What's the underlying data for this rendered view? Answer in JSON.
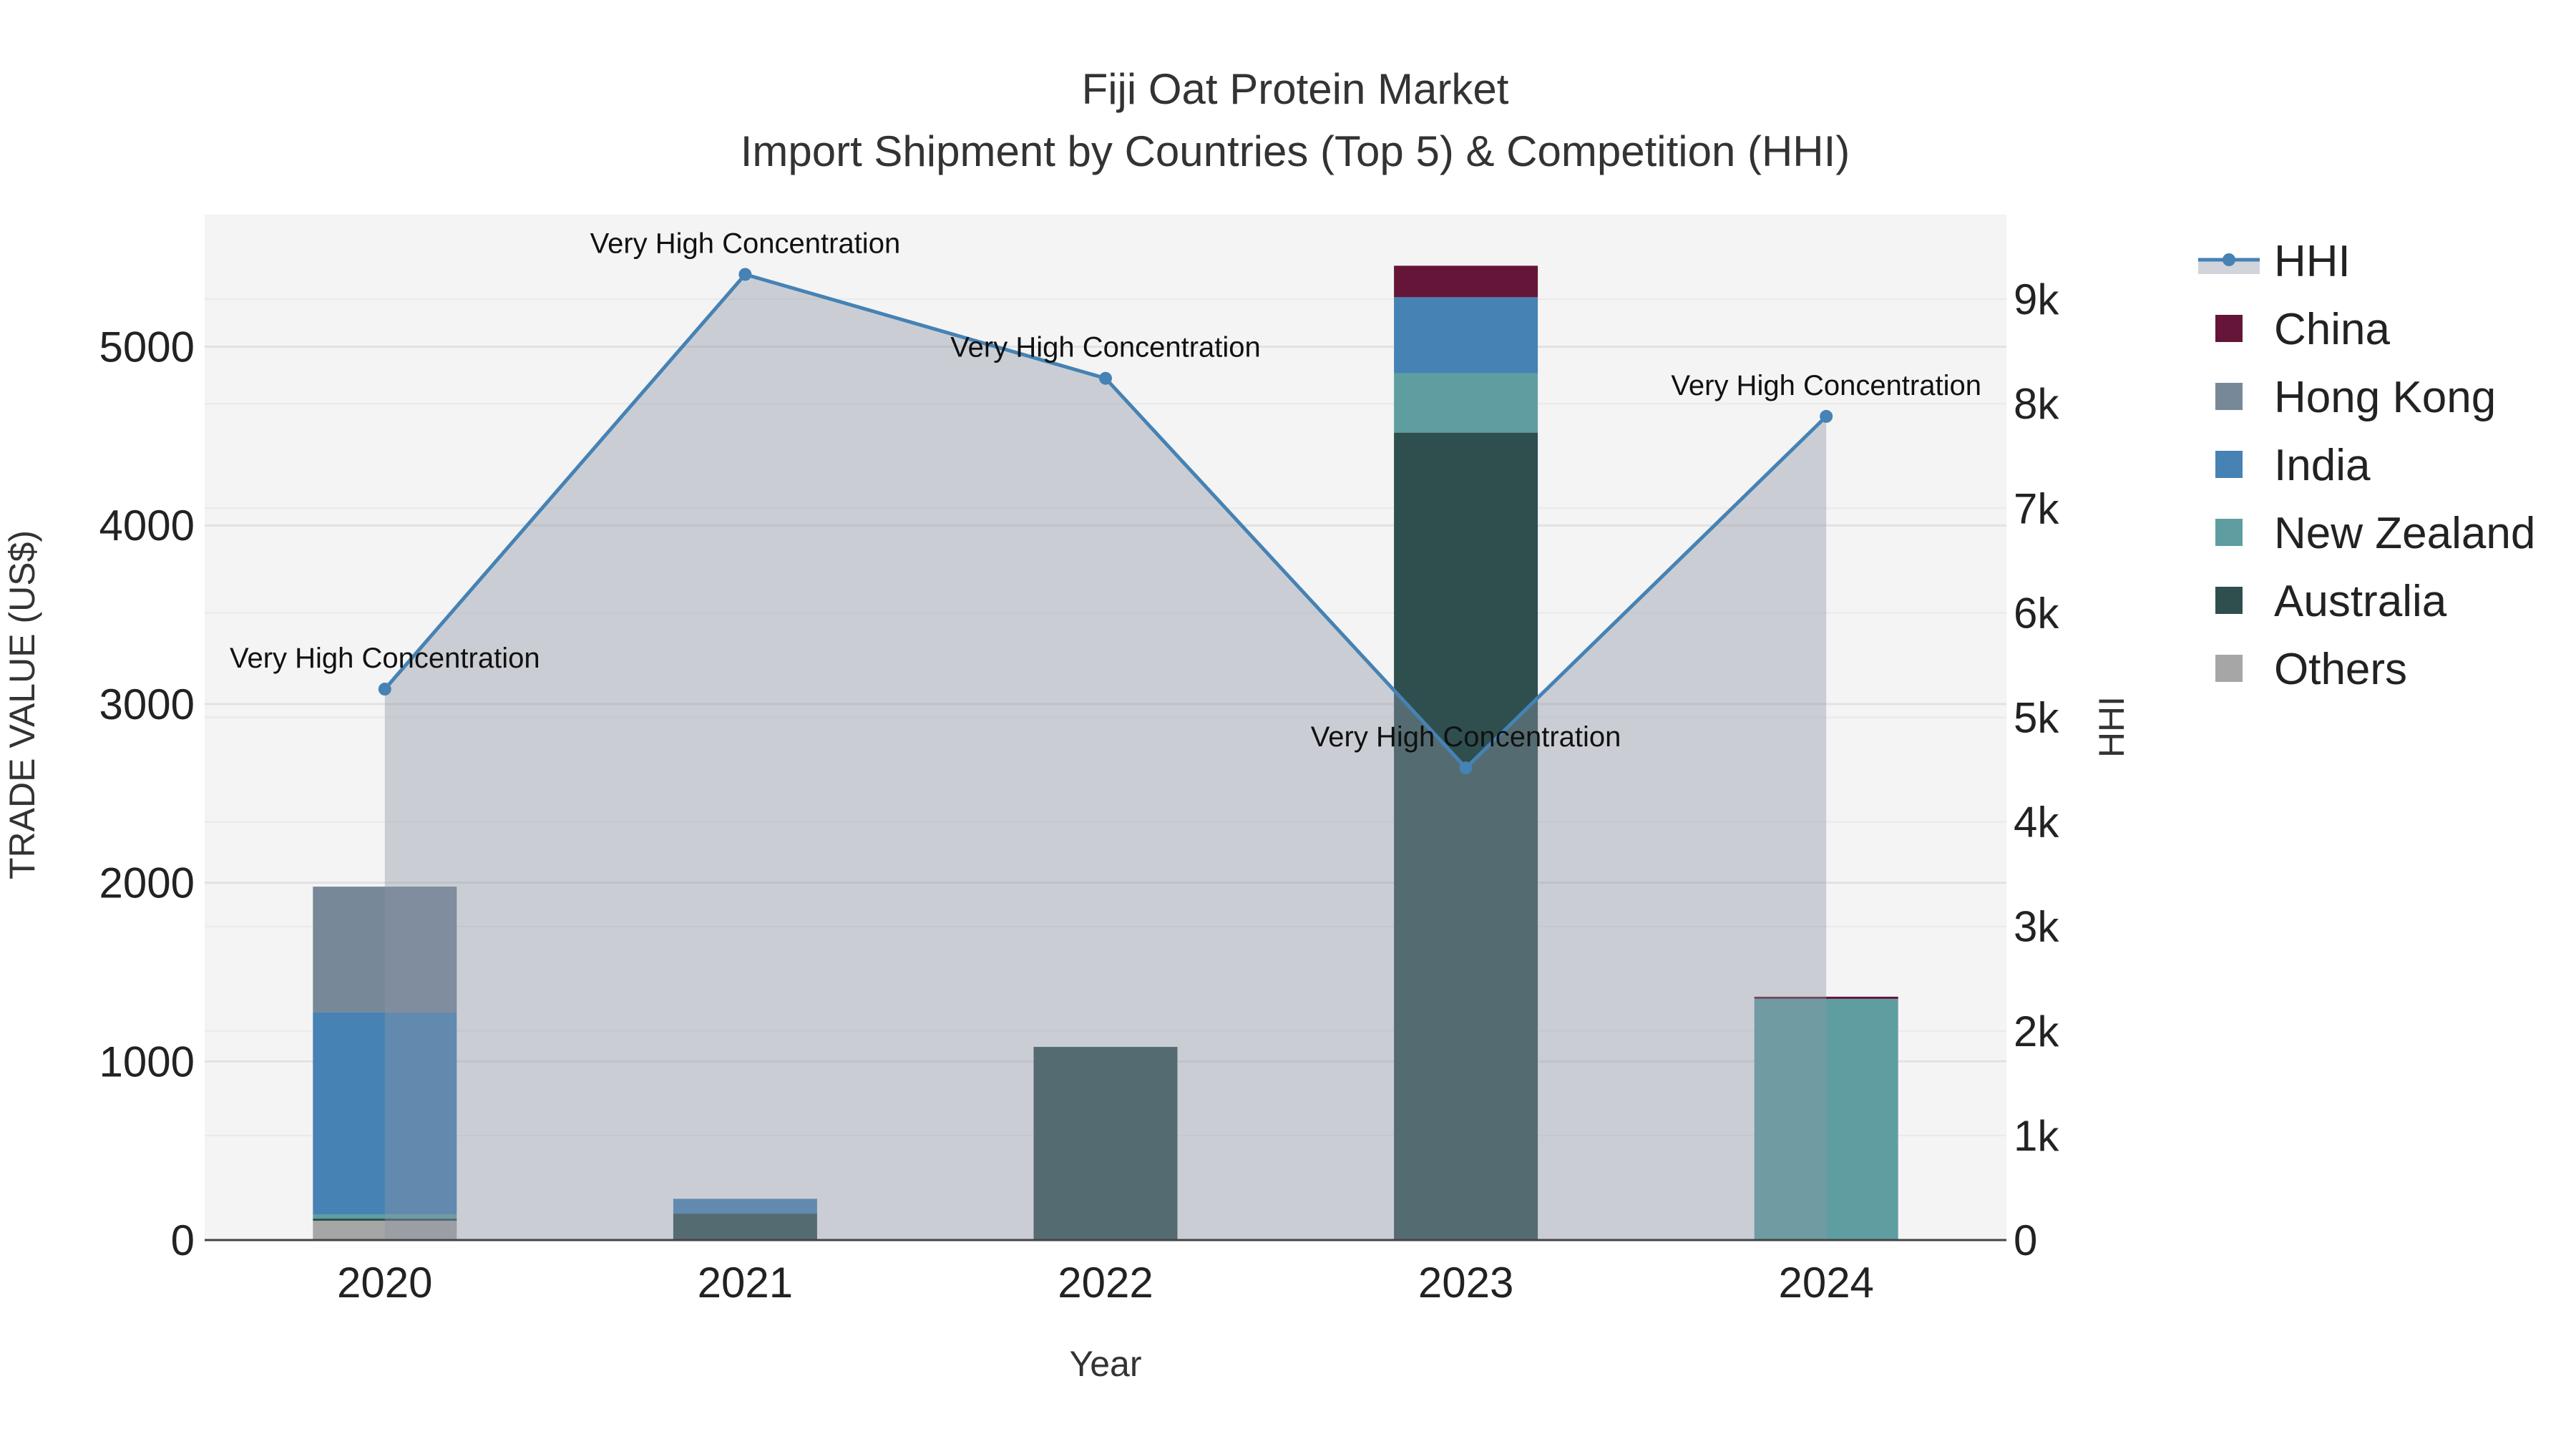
{
  "chart_data": {
    "type": "bar",
    "title": "Fiji Oat Protein Market",
    "subtitle": "Import Shipment by Countries (Top 5) & Competition (HHI)",
    "xlabel": "Year",
    "ylabel": "TRADE VALUE (US$)",
    "y2label": "HHI",
    "categories": [
      "2020",
      "2021",
      "2022",
      "2023",
      "2024"
    ],
    "ylim": [
      0,
      5700
    ],
    "yticks": [
      0,
      1000,
      2000,
      3000,
      4000,
      5000
    ],
    "y2lim": [
      0,
      9800
    ],
    "y2ticks": [
      0,
      1000,
      2000,
      3000,
      4000,
      5000,
      6000,
      7000,
      8000,
      9000
    ],
    "y2ticklabels": [
      "0",
      "1k",
      "2k",
      "3k",
      "4k",
      "5k",
      "6k",
      "7k",
      "8k",
      "9k"
    ],
    "stacked": true,
    "grid": true,
    "legend_position": "right",
    "series": [
      {
        "name": "Others",
        "color": "#a6a6a6",
        "values": [
          108,
          0,
          0,
          0,
          0
        ]
      },
      {
        "name": "Australia",
        "color": "#2f4f4f",
        "values": [
          12,
          148,
          1081,
          4519,
          0
        ]
      },
      {
        "name": "New Zealand",
        "color": "#5f9ea0",
        "values": [
          24,
          0,
          0,
          333,
          1350
        ]
      },
      {
        "name": "India",
        "color": "#4682b4",
        "values": [
          1131,
          83,
          0,
          425,
          0
        ]
      },
      {
        "name": "Hong Kong",
        "color": "#778899",
        "values": [
          703,
          0,
          0,
          0,
          0
        ]
      },
      {
        "name": "China",
        "color": "#641538",
        "values": [
          0,
          0,
          0,
          176,
          12
        ]
      }
    ],
    "line_series": {
      "name": "HHI",
      "color": "#4682b4",
      "axis": "right",
      "values": [
        5270,
        9237,
        8243,
        4516,
        7879
      ],
      "annotations": [
        "Very High Concentration",
        "Very High Concentration",
        "Very High Concentration",
        "Very High Concentration",
        "Very High Concentration"
      ]
    },
    "legend": [
      "HHI",
      "China",
      "Hong Kong",
      "India",
      "New Zealand",
      "Australia",
      "Others"
    ]
  }
}
